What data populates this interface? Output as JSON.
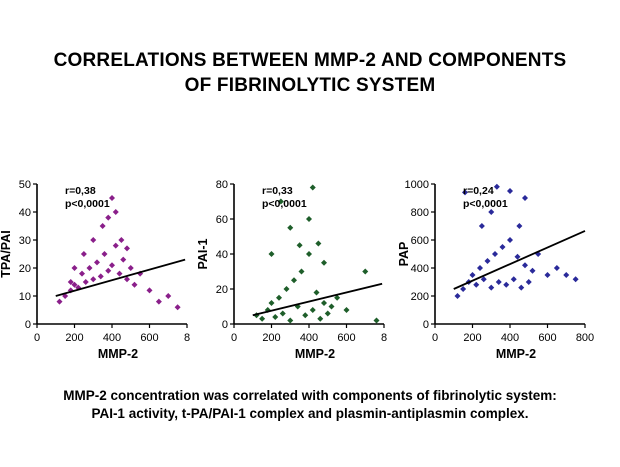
{
  "title": {
    "line1": "CORRELATIONS BETWEEN MMP-2 AND COMPONENTS",
    "line2": "OF FIBRINOLYTIC SYSTEM"
  },
  "caption": {
    "line1": "MMP-2 concentration was correlated with components of fibrinolytic system:",
    "line2": "PAI-1 activity, t-PA/PAI-1 complex and plasmin-antiplasmin complex."
  },
  "chart_data": [
    {
      "type": "scatter",
      "ylabel": "TPA/PAI",
      "xlabel": "MMP-2",
      "x_ticks": [
        "0",
        "200",
        "400",
        "600",
        "8"
      ],
      "y_ticks": [
        "0",
        "10",
        "20",
        "30",
        "40",
        "50"
      ],
      "xlim": [
        0,
        800
      ],
      "ylim": [
        0,
        50
      ],
      "annotation": [
        "r=0,38",
        "p<0,0001"
      ],
      "color": "#8a1f8a",
      "points": [
        [
          120,
          8
        ],
        [
          150,
          10
        ],
        [
          180,
          12
        ],
        [
          200,
          14
        ],
        [
          220,
          13
        ],
        [
          240,
          18
        ],
        [
          260,
          15
        ],
        [
          280,
          20
        ],
        [
          300,
          16
        ],
        [
          320,
          22
        ],
        [
          340,
          17
        ],
        [
          360,
          25
        ],
        [
          380,
          19
        ],
        [
          400,
          21
        ],
        [
          420,
          28
        ],
        [
          440,
          18
        ],
        [
          460,
          23
        ],
        [
          480,
          16
        ],
        [
          500,
          20
        ],
        [
          520,
          14
        ],
        [
          300,
          30
        ],
        [
          350,
          35
        ],
        [
          400,
          45
        ],
        [
          420,
          40
        ],
        [
          380,
          38
        ],
        [
          250,
          25
        ],
        [
          200,
          20
        ],
        [
          180,
          15
        ],
        [
          450,
          30
        ],
        [
          480,
          27
        ],
        [
          550,
          18
        ],
        [
          600,
          12
        ],
        [
          650,
          8
        ],
        [
          700,
          10
        ],
        [
          750,
          6
        ]
      ],
      "fit": [
        [
          100,
          10
        ],
        [
          790,
          23
        ]
      ]
    },
    {
      "type": "scatter",
      "ylabel": "PAI-1",
      "xlabel": "MMP-2",
      "x_ticks": [
        "0",
        "200",
        "400",
        "600",
        "8"
      ],
      "y_ticks": [
        "0",
        "20",
        "40",
        "60",
        "80"
      ],
      "xlim": [
        0,
        800
      ],
      "ylim": [
        0,
        80
      ],
      "annotation": [
        "r=0,33",
        "p<0,0001"
      ],
      "color": "#1e5e2a",
      "points": [
        [
          120,
          5
        ],
        [
          150,
          3
        ],
        [
          180,
          8
        ],
        [
          200,
          12
        ],
        [
          220,
          4
        ],
        [
          240,
          15
        ],
        [
          260,
          6
        ],
        [
          280,
          20
        ],
        [
          300,
          2
        ],
        [
          320,
          25
        ],
        [
          340,
          10
        ],
        [
          360,
          30
        ],
        [
          380,
          5
        ],
        [
          400,
          40
        ],
        [
          420,
          8
        ],
        [
          440,
          18
        ],
        [
          460,
          3
        ],
        [
          480,
          12
        ],
        [
          500,
          6
        ],
        [
          520,
          10
        ],
        [
          200,
          40
        ],
        [
          250,
          70
        ],
        [
          300,
          55
        ],
        [
          350,
          45
        ],
        [
          400,
          60
        ],
        [
          420,
          78
        ],
        [
          450,
          46
        ],
        [
          480,
          35
        ],
        [
          550,
          15
        ],
        [
          600,
          8
        ],
        [
          700,
          30
        ],
        [
          760,
          2
        ]
      ],
      "fit": [
        [
          100,
          5
        ],
        [
          790,
          23
        ]
      ]
    },
    {
      "type": "scatter",
      "ylabel": "PAP",
      "xlabel": "MMP-2",
      "x_ticks": [
        "0",
        "200",
        "400",
        "600",
        "800"
      ],
      "y_ticks": [
        "0",
        "200",
        "400",
        "600",
        "800",
        "1000"
      ],
      "xlim": [
        0,
        800
      ],
      "ylim": [
        0,
        1000
      ],
      "annotation": [
        "r=0,24",
        "p<0,0001"
      ],
      "color": "#2a2a9a",
      "points": [
        [
          120,
          200
        ],
        [
          150,
          250
        ],
        [
          180,
          300
        ],
        [
          200,
          350
        ],
        [
          220,
          280
        ],
        [
          240,
          400
        ],
        [
          260,
          320
        ],
        [
          280,
          450
        ],
        [
          300,
          260
        ],
        [
          320,
          500
        ],
        [
          340,
          300
        ],
        [
          360,
          550
        ],
        [
          380,
          280
        ],
        [
          400,
          600
        ],
        [
          420,
          320
        ],
        [
          440,
          480
        ],
        [
          460,
          260
        ],
        [
          480,
          420
        ],
        [
          500,
          300
        ],
        [
          520,
          380
        ],
        [
          160,
          940
        ],
        [
          330,
          980
        ],
        [
          400,
          950
        ],
        [
          250,
          700
        ],
        [
          300,
          800
        ],
        [
          450,
          700
        ],
        [
          480,
          900
        ],
        [
          550,
          500
        ],
        [
          600,
          350
        ],
        [
          650,
          400
        ],
        [
          700,
          350
        ],
        [
          750,
          320
        ]
      ],
      "fit": [
        [
          100,
          250
        ],
        [
          800,
          665
        ]
      ]
    }
  ]
}
